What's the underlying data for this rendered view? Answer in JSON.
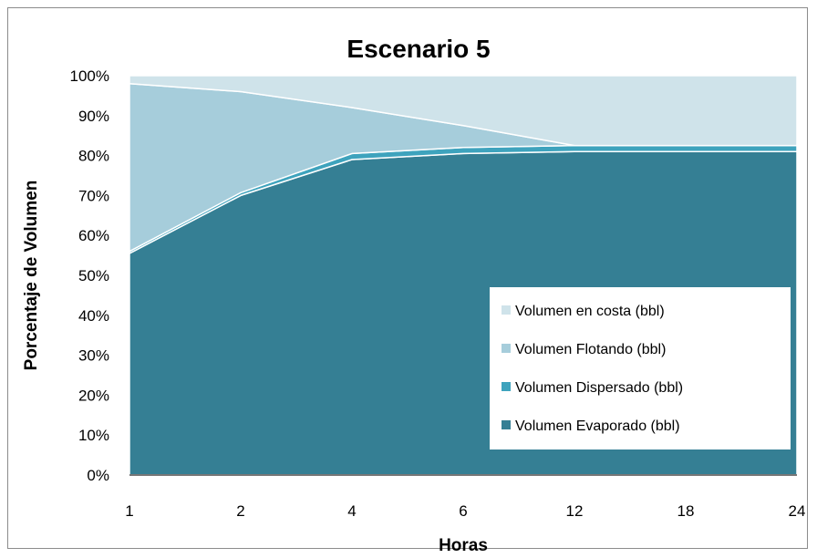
{
  "chart_data": {
    "type": "area",
    "stacked": true,
    "normalized": true,
    "title": "Escenario 5",
    "xlabel": "Horas",
    "ylabel": "Porcentaje de Volumen",
    "categories": [
      "1",
      "2",
      "4",
      "6",
      "12",
      "18",
      "24"
    ],
    "y_ticks": [
      "0%",
      "10%",
      "20%",
      "30%",
      "40%",
      "50%",
      "60%",
      "70%",
      "80%",
      "90%",
      "100%"
    ],
    "ylim": [
      0,
      100
    ],
    "legend_position": "bottom-right",
    "series": [
      {
        "name": "Volumen Evaporado (bbl)",
        "color": "#357f94",
        "values": [
          55.5,
          70,
          79,
          80.5,
          81,
          81,
          81
        ]
      },
      {
        "name": "Volumen Dispersado (bbl)",
        "color": "#3ea3bd",
        "values": [
          0.5,
          0.7,
          1.5,
          1.5,
          1.5,
          1.5,
          1.5
        ]
      },
      {
        "name": "Volumen Flotando (bbl)",
        "color": "#a6cddb",
        "values": [
          42,
          25.3,
          11.5,
          5.5,
          0,
          0,
          0
        ]
      },
      {
        "name": "Volumen en costa (bbl)",
        "color": "#cfe3ea",
        "values": [
          2,
          4,
          8,
          12.5,
          17.5,
          17.5,
          17.5
        ]
      }
    ],
    "legend_order": [
      "Volumen en costa (bbl)",
      "Volumen Flotando (bbl)",
      "Volumen Dispersado (bbl)",
      "Volumen Evaporado (bbl)"
    ]
  }
}
